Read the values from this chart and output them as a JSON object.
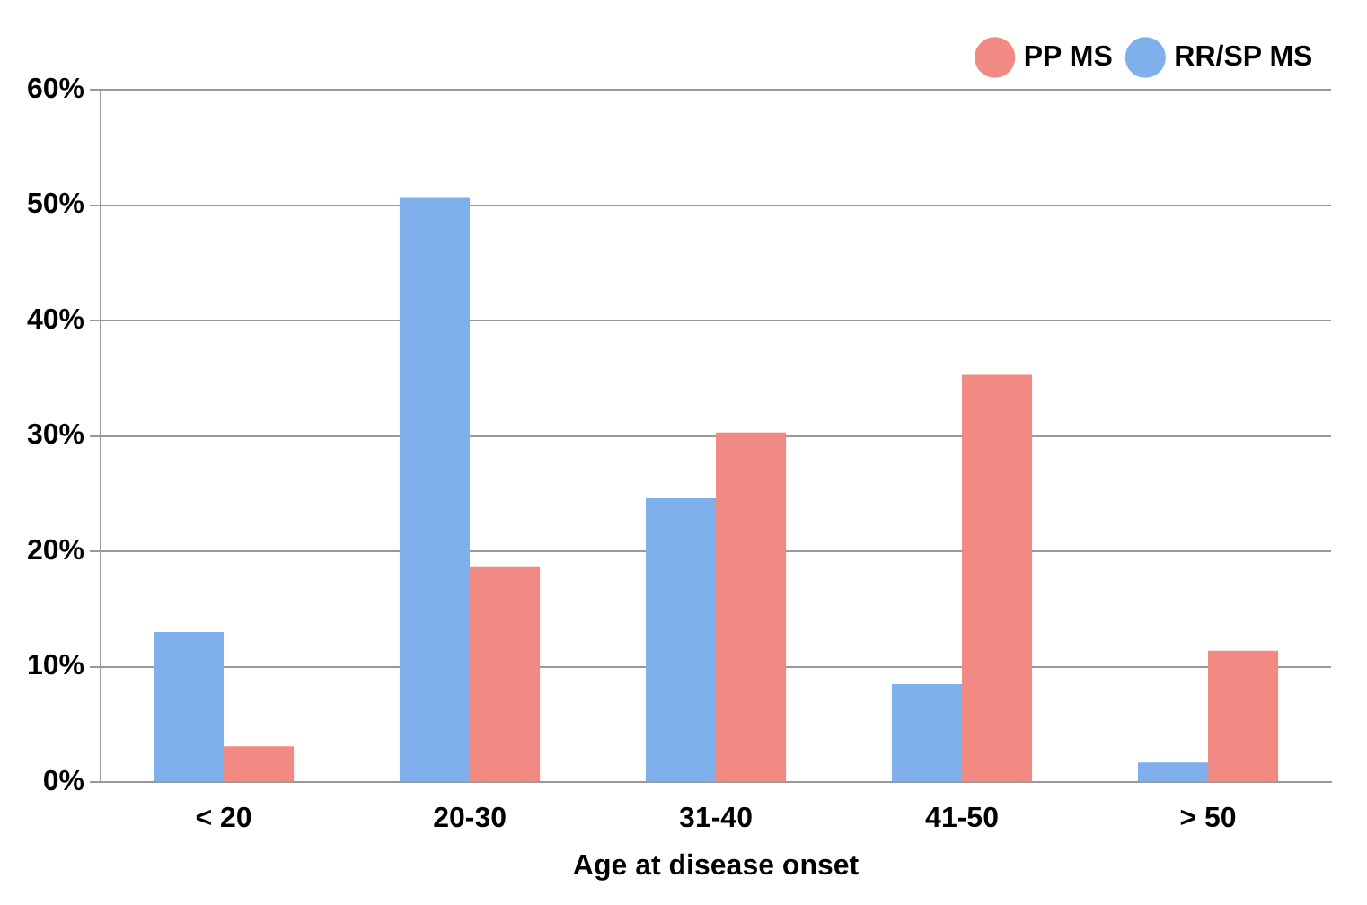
{
  "chart_data": {
    "type": "bar",
    "xlabel": "Age at disease onset",
    "categories": [
      "< 20",
      "20-30",
      "31-40",
      "41-50",
      "> 50"
    ],
    "series": [
      {
        "name": "RR/SP MS",
        "color": "#7fb0ec",
        "values": [
          13,
          50.7,
          24.6,
          8.5,
          1.7
        ]
      },
      {
        "name": "PP MS",
        "color": "#f08a82",
        "values": [
          3.1,
          18.7,
          30.3,
          35.3,
          11.4
        ]
      }
    ],
    "ylim": [
      0,
      60
    ],
    "yticks": [
      {
        "value": 0,
        "label": "0%"
      },
      {
        "value": 10,
        "label": "10%"
      },
      {
        "value": 20,
        "label": "20%"
      },
      {
        "value": 30,
        "label": "30%"
      },
      {
        "value": 40,
        "label": "40%"
      },
      {
        "value": 50,
        "label": "50%"
      },
      {
        "value": 60,
        "label": "60%"
      }
    ],
    "grid": "y",
    "legend": "top right"
  }
}
